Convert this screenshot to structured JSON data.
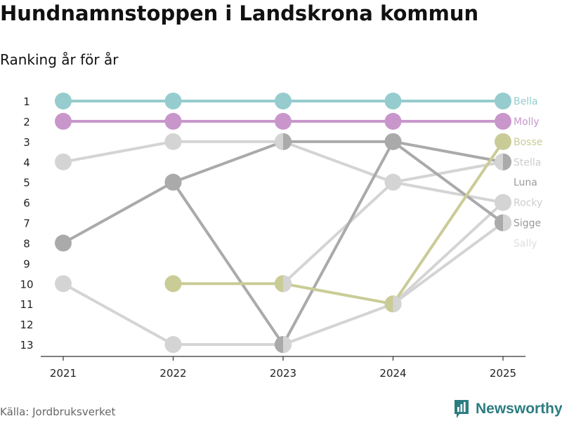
{
  "title": "Hundnamnstoppen i Landskrona kommun",
  "subtitle": "Ranking år för år",
  "source": "Källa: Jordbruksverket",
  "brand": "Newsworthy",
  "colors": {
    "teal": "#96cccd",
    "purple": "#c896cb",
    "olive": "#c9cc96",
    "grey": "#aaaaaa",
    "lightgrey": "#d4d4d4",
    "axis": "#333333",
    "brand": "#2c7d82"
  },
  "chart_data": {
    "type": "line",
    "x": [
      2021,
      2022,
      2023,
      2024,
      2025
    ],
    "ylim": [
      13,
      1
    ],
    "yticks": [
      1,
      2,
      3,
      4,
      5,
      6,
      7,
      8,
      9,
      10,
      11,
      12,
      13
    ],
    "series": [
      {
        "name": "Rocky",
        "values": [
          10,
          13,
          13,
          11,
          6
        ],
        "color": "#d4d4d4"
      },
      {
        "name": "Stella",
        "values": [
          4,
          3,
          3,
          5,
          4
        ],
        "color": "#d4d4d4"
      },
      {
        "name": "Luna",
        "values": [
          null,
          null,
          10,
          5,
          6
        ],
        "color": "#d4d4d4"
      },
      {
        "name": "Sally",
        "values": [
          null,
          null,
          null,
          11,
          7
        ],
        "color": "#d4d4d4"
      },
      {
        "name": "Sigge",
        "values": [
          null,
          5,
          13,
          3,
          7
        ],
        "color": "#aaaaaa"
      },
      {
        "name": "Bosse_grey",
        "values": [
          8,
          5,
          3,
          3,
          4
        ],
        "color": "#aaaaaa"
      },
      {
        "name": "Bosse",
        "values": [
          null,
          10,
          10,
          11,
          3
        ],
        "color": "#c9cc96"
      },
      {
        "name": "Molly",
        "values": [
          2,
          2,
          2,
          2,
          2
        ],
        "color": "#c896cb"
      },
      {
        "name": "Bella",
        "values": [
          1,
          1,
          1,
          1,
          1
        ],
        "color": "#96cccd"
      }
    ],
    "labels": [
      {
        "text": "Bella",
        "rank": 1,
        "color": "#96cccd"
      },
      {
        "text": "Molly",
        "rank": 2,
        "color": "#c896cb"
      },
      {
        "text": "Bosse",
        "rank": 3,
        "color": "#c9cc96"
      },
      {
        "text": "Stella",
        "rank": 4,
        "color": "#cccccc"
      },
      {
        "text": "Luna",
        "rank": 5,
        "color": "#999999"
      },
      {
        "text": "Rocky",
        "rank": 6,
        "color": "#cccccc"
      },
      {
        "text": "Sigge",
        "rank": 7,
        "color": "#999999"
      },
      {
        "text": "Sally",
        "rank": 8,
        "color": "#dddddd"
      }
    ],
    "half_markers": [
      {
        "x": 2023,
        "rank": 3,
        "left": "#d4d4d4",
        "right": "#aaaaaa"
      },
      {
        "x": 2023,
        "rank": 10,
        "left": "#c9cc96",
        "right": "#d4d4d4"
      },
      {
        "x": 2023,
        "rank": 13,
        "left": "#aaaaaa",
        "right": "#d4d4d4"
      },
      {
        "x": 2024,
        "rank": 11,
        "left": "#c9cc96",
        "right": "#d4d4d4"
      },
      {
        "x": 2025,
        "rank": 4,
        "left": "#d4d4d4",
        "right": "#aaaaaa"
      },
      {
        "x": 2025,
        "rank": 7,
        "left": "#aaaaaa",
        "right": "#d4d4d4"
      }
    ]
  }
}
